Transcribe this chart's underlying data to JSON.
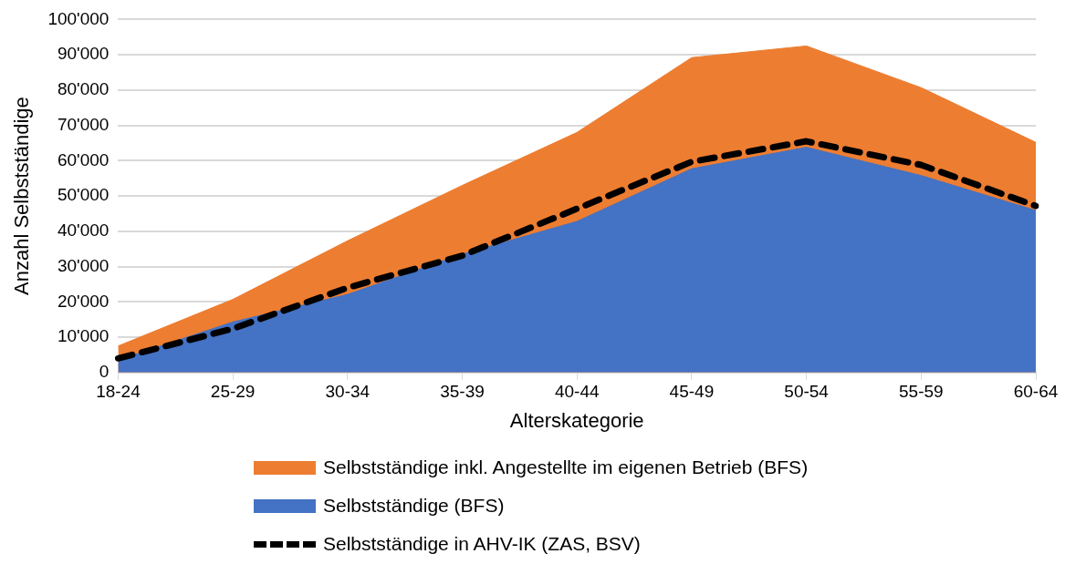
{
  "chart_data": {
    "type": "area",
    "xlabel": "Alterskategorie",
    "ylabel": "Anzahl Selbstständige",
    "categories": [
      "18-24",
      "25-29",
      "30-34",
      "35-39",
      "40-44",
      "45-49",
      "50-54",
      "55-59",
      "60-64"
    ],
    "series": [
      {
        "name": "Selbstständige inkl. Angestellte im eigenen Betrieb (BFS)",
        "type": "area",
        "color": "#ed7d31",
        "values": [
          7500,
          20700,
          37300,
          53000,
          68000,
          89200,
          92500,
          80700,
          65200
        ]
      },
      {
        "name": "Selbstständige (BFS)",
        "type": "area",
        "color": "#4472c4",
        "values": [
          3500,
          14300,
          22100,
          33500,
          42800,
          57700,
          63800,
          55800,
          45900
        ]
      },
      {
        "name": "Selbstständige in AHV-IK (ZAS, BSV)",
        "type": "line",
        "color": "#000000",
        "line_style": "dashed",
        "values": [
          4000,
          12400,
          24000,
          33100,
          46400,
          59700,
          65500,
          58800,
          47200
        ]
      }
    ],
    "ylim": [
      0,
      100000
    ],
    "yticks": [
      0,
      {
        "value": 10000,
        "label": "10'000"
      },
      {
        "value": 20000,
        "label": "20'000"
      },
      {
        "value": 30000,
        "label": "30'000"
      },
      {
        "value": 40000,
        "label": "40'000"
      },
      {
        "value": 50000,
        "label": "50'000"
      },
      {
        "value": 60000,
        "label": "60'000"
      },
      {
        "value": 70000,
        "label": "70'000"
      },
      {
        "value": 80000,
        "label": "80'000"
      },
      {
        "value": 90000,
        "label": "90'000"
      },
      {
        "value": 100000,
        "label": "100'000"
      }
    ],
    "grid": "y",
    "legend": "bottom"
  }
}
